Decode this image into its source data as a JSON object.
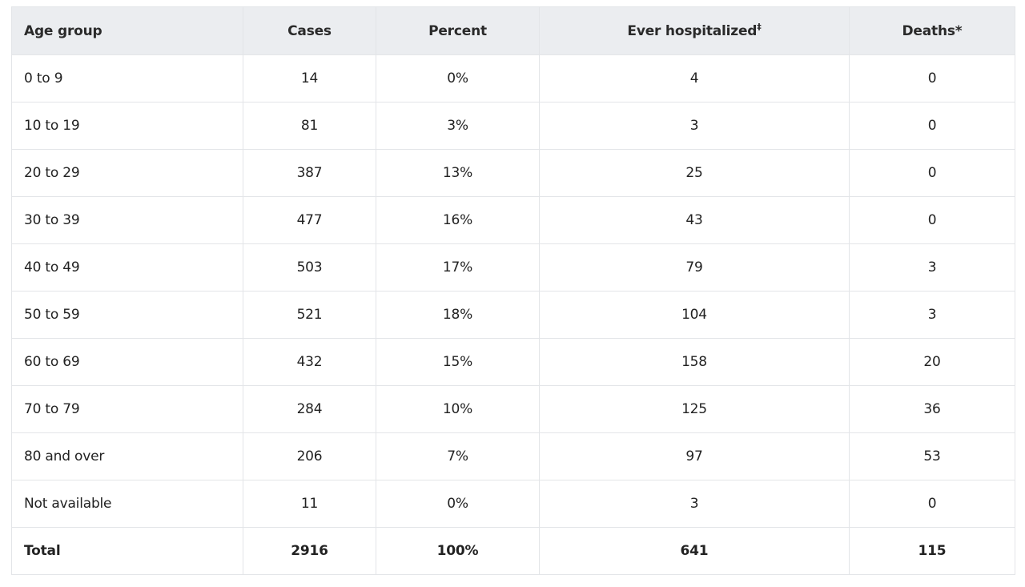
{
  "table": {
    "headers": {
      "age_group": "Age group",
      "cases": "Cases",
      "percent": "Percent",
      "hospitalized": "Ever hospitalized",
      "hospitalized_mark": "‡",
      "deaths": "Deaths*"
    },
    "rows": [
      {
        "age_group": "0 to 9",
        "cases": "14",
        "percent": "0%",
        "hospitalized": "4",
        "deaths": "0"
      },
      {
        "age_group": "10 to 19",
        "cases": "81",
        "percent": "3%",
        "hospitalized": "3",
        "deaths": "0"
      },
      {
        "age_group": "20 to 29",
        "cases": "387",
        "percent": "13%",
        "hospitalized": "25",
        "deaths": "0"
      },
      {
        "age_group": "30 to 39",
        "cases": "477",
        "percent": "16%",
        "hospitalized": "43",
        "deaths": "0"
      },
      {
        "age_group": "40 to 49",
        "cases": "503",
        "percent": "17%",
        "hospitalized": "79",
        "deaths": "3"
      },
      {
        "age_group": "50 to 59",
        "cases": "521",
        "percent": "18%",
        "hospitalized": "104",
        "deaths": "3"
      },
      {
        "age_group": "60 to 69",
        "cases": "432",
        "percent": "15%",
        "hospitalized": "158",
        "deaths": "20"
      },
      {
        "age_group": "70 to 79",
        "cases": "284",
        "percent": "10%",
        "hospitalized": "125",
        "deaths": "36"
      },
      {
        "age_group": "80 and over",
        "cases": "206",
        "percent": "7%",
        "hospitalized": "97",
        "deaths": "53"
      },
      {
        "age_group": "Not available",
        "cases": "11",
        "percent": "0%",
        "hospitalized": "3",
        "deaths": "0"
      }
    ],
    "total": {
      "age_group": "Total",
      "cases": "2916",
      "percent": "100%",
      "hospitalized": "641",
      "deaths": "115"
    }
  },
  "colors": {
    "header_background": "#ebedf0",
    "border": "#e3e5e8",
    "text": "#222222"
  }
}
